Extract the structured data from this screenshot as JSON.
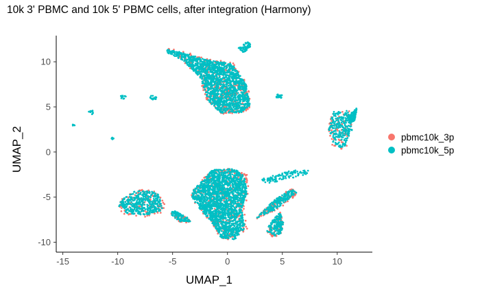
{
  "chart_data": {
    "type": "scatter",
    "title": "10k 3' PBMC and 10k 5' PBMC cells, after integration (Harmony)",
    "xlabel": "UMAP_1",
    "ylabel": "UMAP_2",
    "xlim": [
      -15.6,
      13.2
    ],
    "ylim": [
      -11.1,
      12.9
    ],
    "xticks": [
      -15,
      -10,
      -5,
      0,
      5,
      10
    ],
    "yticks": [
      -10,
      -5,
      0,
      5,
      10
    ],
    "grid": false,
    "legend_position": "right",
    "series": [
      {
        "name": "pbmc10k_3p",
        "color": "#F8766D",
        "clusters": [
          {
            "shape": "hull",
            "n": 420,
            "points": [
              [
                -5.6,
                11.5
              ],
              [
                -4.5,
                11.4
              ],
              [
                -2.5,
                10.6
              ],
              [
                -1.2,
                10.2
              ],
              [
                0.5,
                10.0
              ],
              [
                1.8,
                7.5
              ],
              [
                2.3,
                5.0
              ],
              [
                1.6,
                4.3
              ],
              [
                -0.5,
                4.2
              ],
              [
                -1.8,
                5.5
              ],
              [
                -2.6,
                8.2
              ],
              [
                -4.2,
                10.3
              ],
              [
                -5.7,
                11.2
              ]
            ]
          },
          {
            "shape": "hull",
            "n": 80,
            "points": [
              [
                9.6,
                4.6
              ],
              [
                11.2,
                4.7
              ],
              [
                11.5,
                2.5
              ],
              [
                10.9,
                0.5
              ],
              [
                10.2,
                0.3
              ],
              [
                9.5,
                0.8
              ],
              [
                9.1,
                2.2
              ],
              [
                9.4,
                3.8
              ]
            ]
          },
          {
            "shape": "hull",
            "n": 120,
            "points": [
              [
                -9.8,
                -5.3
              ],
              [
                -8.6,
                -4.3
              ],
              [
                -7.1,
                -4.1
              ],
              [
                -6.2,
                -4.6
              ],
              [
                -5.6,
                -6.0
              ],
              [
                -6.0,
                -6.8
              ],
              [
                -7.6,
                -7.2
              ],
              [
                -9.3,
                -7.0
              ],
              [
                -10.0,
                -6.2
              ]
            ]
          },
          {
            "shape": "hull",
            "n": 420,
            "points": [
              [
                -3.2,
                -4.3
              ],
              [
                -1.5,
                -2.0
              ],
              [
                0.5,
                -1.8
              ],
              [
                1.8,
                -2.5
              ],
              [
                2.0,
                -4.5
              ],
              [
                1.5,
                -6.5
              ],
              [
                1.8,
                -8.5
              ],
              [
                0.8,
                -9.8
              ],
              [
                -0.6,
                -9.6
              ],
              [
                -1.4,
                -8.0
              ],
              [
                -2.6,
                -6.3
              ],
              [
                -3.4,
                -5.0
              ]
            ]
          },
          {
            "shape": "hull",
            "n": 110,
            "points": [
              [
                2.6,
                -7.5
              ],
              [
                4.5,
                -6.5
              ],
              [
                6.5,
                -4.6
              ],
              [
                5.8,
                -4.0
              ],
              [
                4.2,
                -5.4
              ],
              [
                3.0,
                -6.8
              ]
            ]
          },
          {
            "shape": "hull",
            "n": 70,
            "points": [
              [
                4.0,
                -8.0
              ],
              [
                4.8,
                -6.6
              ],
              [
                5.1,
                -7.8
              ],
              [
                4.9,
                -9.1
              ],
              [
                4.2,
                -9.5
              ],
              [
                3.5,
                -9.0
              ]
            ]
          },
          {
            "shape": "hull",
            "n": 30,
            "points": [
              [
                -5.0,
                -6.5
              ],
              [
                -3.6,
                -7.3
              ],
              [
                -3.2,
                -7.9
              ],
              [
                -4.3,
                -7.8
              ],
              [
                -5.2,
                -7.0
              ]
            ]
          }
        ]
      },
      {
        "name": "pbmc10k_5p",
        "color": "#00BFC4",
        "clusters": [
          {
            "shape": "hull",
            "n": 1600,
            "points": [
              [
                -5.5,
                11.4
              ],
              [
                -4.3,
                11.1
              ],
              [
                -2.4,
                10.4
              ],
              [
                -1.3,
                10.1
              ],
              [
                0.4,
                9.8
              ],
              [
                1.7,
                7.5
              ],
              [
                2.1,
                5.2
              ],
              [
                1.3,
                4.4
              ],
              [
                -0.6,
                4.3
              ],
              [
                -1.7,
                5.6
              ],
              [
                -2.5,
                8.3
              ],
              [
                -4.1,
                10.2
              ],
              [
                -5.5,
                11.0
              ]
            ]
          },
          {
            "shape": "hull",
            "n": 260,
            "points": [
              [
                9.7,
                4.5
              ],
              [
                11.0,
                4.6
              ],
              [
                11.4,
                2.6
              ],
              [
                10.7,
                0.6
              ],
              [
                10.2,
                0.5
              ],
              [
                9.6,
                0.9
              ],
              [
                9.2,
                2.3
              ],
              [
                9.5,
                3.9
              ]
            ]
          },
          {
            "shape": "hull",
            "n": 150,
            "points": [
              [
                11.0,
                4.0
              ],
              [
                11.8,
                4.9
              ],
              [
                11.6,
                3.5
              ],
              [
                11.1,
                3.2
              ]
            ]
          },
          {
            "shape": "hull",
            "n": 420,
            "points": [
              [
                -9.7,
                -5.3
              ],
              [
                -8.5,
                -4.4
              ],
              [
                -7.2,
                -4.2
              ],
              [
                -6.3,
                -4.7
              ],
              [
                -5.8,
                -6.0
              ],
              [
                -6.2,
                -6.7
              ],
              [
                -7.6,
                -7.0
              ],
              [
                -9.2,
                -6.8
              ],
              [
                -9.9,
                -6.1
              ]
            ]
          },
          {
            "shape": "hull",
            "n": 1900,
            "points": [
              [
                -3.1,
                -4.2
              ],
              [
                -1.4,
                -2.0
              ],
              [
                0.5,
                -1.8
              ],
              [
                1.5,
                -2.5
              ],
              [
                1.8,
                -4.5
              ],
              [
                1.3,
                -6.4
              ],
              [
                1.6,
                -8.4
              ],
              [
                0.7,
                -9.7
              ],
              [
                -0.6,
                -9.5
              ],
              [
                -1.3,
                -8.0
              ],
              [
                -2.5,
                -6.3
              ],
              [
                -3.3,
                -5.0
              ]
            ]
          },
          {
            "shape": "hull",
            "n": 110,
            "points": [
              [
                2.8,
                -3.1
              ],
              [
                4.5,
                -2.5
              ],
              [
                6.0,
                -2.0
              ],
              [
                7.5,
                -2.0
              ],
              [
                7.2,
                -2.5
              ],
              [
                5.5,
                -3.0
              ],
              [
                3.8,
                -3.5
              ]
            ]
          },
          {
            "shape": "hull",
            "n": 200,
            "points": [
              [
                2.6,
                -7.4
              ],
              [
                4.5,
                -6.3
              ],
              [
                6.3,
                -4.5
              ],
              [
                5.9,
                -4.1
              ],
              [
                4.3,
                -5.3
              ],
              [
                3.1,
                -6.7
              ]
            ]
          },
          {
            "shape": "hull",
            "n": 170,
            "points": [
              [
                3.8,
                -8.0
              ],
              [
                4.8,
                -6.6
              ],
              [
                5.1,
                -7.8
              ],
              [
                4.9,
                -9.0
              ],
              [
                4.3,
                -9.3
              ],
              [
                3.6,
                -8.8
              ]
            ]
          },
          {
            "shape": "hull",
            "n": 90,
            "points": [
              [
                -5.0,
                -6.4
              ],
              [
                -3.7,
                -7.2
              ],
              [
                -3.3,
                -7.8
              ],
              [
                -4.4,
                -7.7
              ],
              [
                -5.1,
                -7.0
              ]
            ]
          },
          {
            "shape": "hull",
            "n": 70,
            "points": [
              [
                1.0,
                11.5
              ],
              [
                1.8,
                12.3
              ],
              [
                2.2,
                11.8
              ],
              [
                1.5,
                11.0
              ]
            ]
          },
          {
            "shape": "blob",
            "n": 20,
            "cx": 4.7,
            "cy": 6.2,
            "rx": 0.35,
            "ry": 0.25
          },
          {
            "shape": "blob",
            "n": 18,
            "cx": -6.8,
            "cy": 6.0,
            "rx": 0.35,
            "ry": 0.25
          },
          {
            "shape": "blob",
            "n": 12,
            "cx": -9.5,
            "cy": 6.1,
            "rx": 0.25,
            "ry": 0.2
          },
          {
            "shape": "blob",
            "n": 14,
            "cx": -12.4,
            "cy": 4.4,
            "rx": 0.25,
            "ry": 0.25
          },
          {
            "shape": "blob",
            "n": 6,
            "cx": -14.0,
            "cy": 3.0,
            "rx": 0.12,
            "ry": 0.12
          },
          {
            "shape": "blob",
            "n": 6,
            "cx": -10.5,
            "cy": 1.5,
            "rx": 0.12,
            "ry": 0.12
          }
        ]
      }
    ]
  }
}
